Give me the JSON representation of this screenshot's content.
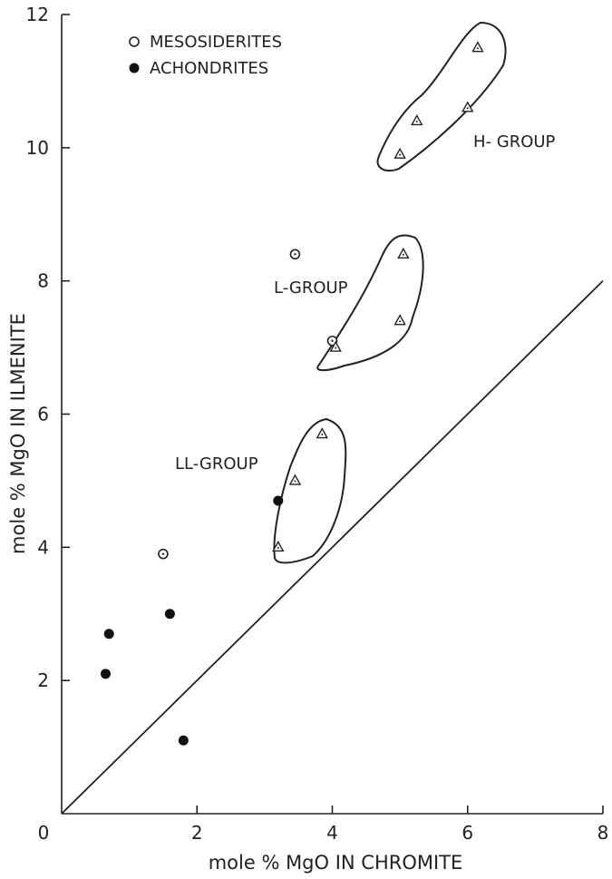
{
  "chart_data": {
    "type": "scatter",
    "xlabel": "mole % MgO IN CHROMITE",
    "ylabel": "mole % MgO IN ILMENITE",
    "xlim": [
      0,
      8
    ],
    "ylim": [
      0,
      12
    ],
    "xticks": [
      "0",
      "2",
      "4",
      "6",
      "8"
    ],
    "yticks": [
      "2",
      "4",
      "6",
      "8",
      "10",
      "12"
    ],
    "grid": false,
    "legend": {
      "position": "top-left",
      "entries": [
        {
          "label": "MESOSIDERITES",
          "marker": "open-circle"
        },
        {
          "label": "ACHONDRITES",
          "marker": "filled-circle"
        }
      ]
    },
    "series": [
      {
        "name": "MESOSIDERITES",
        "marker": "open-circle",
        "points": [
          [
            1.5,
            3.9
          ],
          [
            3.45,
            8.4
          ],
          [
            4.0,
            7.1
          ]
        ]
      },
      {
        "name": "ACHONDRITES",
        "marker": "filled-circle",
        "points": [
          [
            0.65,
            2.1
          ],
          [
            0.7,
            2.7
          ],
          [
            1.6,
            3.0
          ],
          [
            1.8,
            1.1
          ],
          [
            3.2,
            4.7
          ]
        ]
      },
      {
        "name": "",
        "marker": "open-triangle",
        "points": [
          [
            3.2,
            4.0
          ],
          [
            3.45,
            5.0
          ],
          [
            3.85,
            5.7
          ],
          [
            4.05,
            7.0
          ],
          [
            5.0,
            7.4
          ],
          [
            5.05,
            8.4
          ],
          [
            5.0,
            9.9
          ],
          [
            5.25,
            10.4
          ],
          [
            6.0,
            10.6
          ],
          [
            6.15,
            11.5
          ]
        ]
      }
    ],
    "groups": [
      {
        "label": "H- GROUP"
      },
      {
        "label": "L-GROUP"
      },
      {
        "label": "LL-GROUP"
      }
    ],
    "reference_line": {
      "from": [
        0,
        0
      ],
      "to": [
        8,
        8
      ]
    }
  }
}
